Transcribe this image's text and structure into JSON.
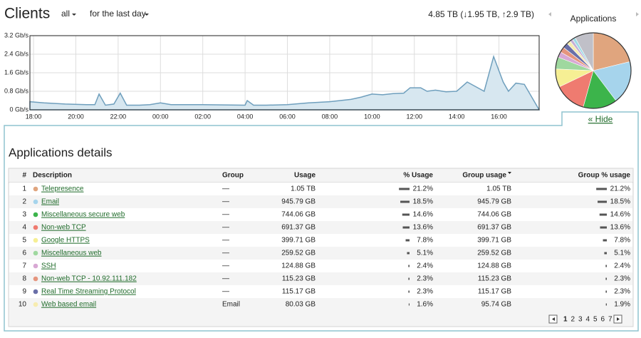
{
  "header": {
    "title": "Clients",
    "filter_group": "all",
    "filter_period": "for the last day",
    "total": "4.85 TB (↓1.95 TB, ↑2.9 TB)",
    "pie_title": "Applications",
    "hide": "« Hide"
  },
  "chart_data": [
    {
      "type": "area",
      "color": "#6f9fbd",
      "fill": "#d7e7f0",
      "grid": true,
      "x": [
        -0.17,
        0.5,
        1.5,
        2.5,
        2.9,
        3.1,
        3.4,
        3.8,
        4.1,
        4.4,
        5,
        5.5,
        6,
        6.5,
        8,
        10,
        10.1,
        10.4,
        11,
        12,
        13,
        14,
        15,
        15.5,
        16,
        16.5,
        17,
        17.5,
        17.8,
        18.3,
        18.6,
        19,
        19.5,
        20,
        20.5,
        21.3,
        21.75,
        22.2,
        22.45,
        22.8,
        23.2,
        23.9
      ],
      "values": [
        0.35,
        0.3,
        0.25,
        0.22,
        0.22,
        0.68,
        0.2,
        0.25,
        0.72,
        0.2,
        0.2,
        0.22,
        0.3,
        0.22,
        0.22,
        0.2,
        0.4,
        0.2,
        0.2,
        0.22,
        0.3,
        0.35,
        0.45,
        0.55,
        0.68,
        0.65,
        0.7,
        0.72,
        0.95,
        0.95,
        0.8,
        0.85,
        0.78,
        0.8,
        1.2,
        0.8,
        2.3,
        1.2,
        0.8,
        1.15,
        1.1,
        0
      ],
      "xlim": [
        -0.17,
        23.9
      ],
      "ylim": [
        0,
        3.2
      ],
      "xticks": [
        {
          "value": 0,
          "label": "18:00"
        },
        {
          "value": 2,
          "label": "20:00"
        },
        {
          "value": 4,
          "label": "22:00"
        },
        {
          "value": 6,
          "label": "00:00"
        },
        {
          "value": 8,
          "label": "02:00"
        },
        {
          "value": 10,
          "label": "04:00"
        },
        {
          "value": 12,
          "label": "06:00"
        },
        {
          "value": 14,
          "label": "08:00"
        },
        {
          "value": 16,
          "label": "10:00"
        },
        {
          "value": 18,
          "label": "12:00"
        },
        {
          "value": 20,
          "label": "14:00"
        },
        {
          "value": 22,
          "label": "16:00"
        }
      ],
      "yticks": [
        {
          "value": 0,
          "label": "0 Gb/s"
        },
        {
          "value": 0.8,
          "label": "0.8 Gb/s"
        },
        {
          "value": 1.6,
          "label": "1.6 Gb/s"
        },
        {
          "value": 2.4,
          "label": "2.4 Gb/s"
        },
        {
          "value": 3.2,
          "label": "3.2 Gb/s"
        }
      ]
    },
    {
      "type": "pie",
      "values": [
        21.2,
        18.5,
        14.6,
        13.6,
        7.8,
        5.1,
        2.4,
        2.3,
        2.3,
        1.6,
        1.3,
        1.3,
        8.0
      ],
      "colors": [
        "#e0a57e",
        "#a6d4ec",
        "#3cb44b",
        "#ef7b70",
        "#f6ef94",
        "#9fd89f",
        "#d8a8d4",
        "#e5957e",
        "#6a6fa8",
        "#f7ecb0",
        "#c5b0d5",
        "#9edae5",
        "#c0c0c8"
      ]
    }
  ],
  "details": {
    "title": "Applications details",
    "columns": [
      "#",
      "Description",
      "Group",
      "Usage",
      "% Usage",
      "Group usage",
      "Group % usage"
    ],
    "rows": [
      {
        "index": 1,
        "color": "#e0a57e",
        "description": "Telepresence",
        "group": "—",
        "usage": "1.05 TB",
        "pct": 21.2,
        "pct_label": "21.2%",
        "group_usage": "1.05 TB",
        "group_pct": 21.2,
        "group_pct_label": "21.2%"
      },
      {
        "index": 2,
        "color": "#a6d4ec",
        "description": "Email",
        "group": "—",
        "usage": "945.79 GB",
        "pct": 18.5,
        "pct_label": "18.5%",
        "group_usage": "945.79 GB",
        "group_pct": 18.5,
        "group_pct_label": "18.5%"
      },
      {
        "index": 3,
        "color": "#3cb44b",
        "description": "Miscellaneous secure web",
        "group": "—",
        "usage": "744.06 GB",
        "pct": 14.6,
        "pct_label": "14.6%",
        "group_usage": "744.06 GB",
        "group_pct": 14.6,
        "group_pct_label": "14.6%"
      },
      {
        "index": 4,
        "color": "#ef7b70",
        "description": "Non-web TCP",
        "group": "—",
        "usage": "691.37 GB",
        "pct": 13.6,
        "pct_label": "13.6%",
        "group_usage": "691.37 GB",
        "group_pct": 13.6,
        "group_pct_label": "13.6%"
      },
      {
        "index": 5,
        "color": "#f6ef94",
        "description": "Google HTTPS",
        "group": "—",
        "usage": "399.71 GB",
        "pct": 7.8,
        "pct_label": "7.8%",
        "group_usage": "399.71 GB",
        "group_pct": 7.8,
        "group_pct_label": "7.8%"
      },
      {
        "index": 6,
        "color": "#9fd89f",
        "description": "Miscellaneous web",
        "group": "—",
        "usage": "259.52 GB",
        "pct": 5.1,
        "pct_label": "5.1%",
        "group_usage": "259.52 GB",
        "group_pct": 5.1,
        "group_pct_label": "5.1%"
      },
      {
        "index": 7,
        "color": "#d8a8d4",
        "description": "SSH",
        "group": "—",
        "usage": "124.88 GB",
        "pct": 2.4,
        "pct_label": "2.4%",
        "group_usage": "124.88 GB",
        "group_pct": 2.4,
        "group_pct_label": "2.4%"
      },
      {
        "index": 8,
        "color": "#e5957e",
        "description": "Non-web TCP - 10.92.111.182",
        "group": "—",
        "usage": "115.23 GB",
        "pct": 2.3,
        "pct_label": "2.3%",
        "group_usage": "115.23 GB",
        "group_pct": 2.3,
        "group_pct_label": "2.3%"
      },
      {
        "index": 9,
        "color": "#6a6fa8",
        "description": "Real Time Streaming Protocol",
        "group": "—",
        "usage": "115.17 GB",
        "pct": 2.3,
        "pct_label": "2.3%",
        "group_usage": "115.17 GB",
        "group_pct": 2.3,
        "group_pct_label": "2.3%"
      },
      {
        "index": 10,
        "color": "#f7ecb0",
        "description": "Web based email",
        "group": "Email",
        "usage": "80.03 GB",
        "pct": 1.6,
        "pct_label": "1.6%",
        "group_usage": "95.74 GB",
        "group_pct": 1.9,
        "group_pct_label": "1.9%"
      }
    ]
  },
  "pagination": [
    1,
    2,
    3,
    4,
    5,
    6,
    7
  ]
}
